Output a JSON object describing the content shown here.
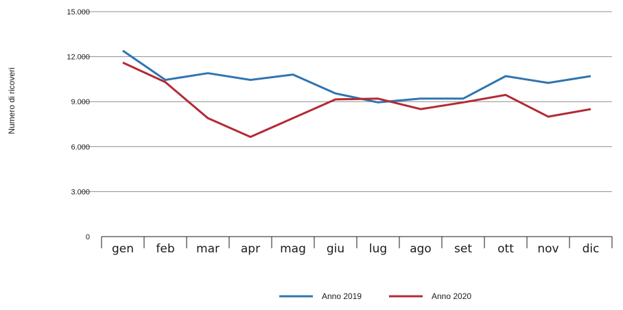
{
  "chart_data": {
    "type": "line",
    "ylabel": "Numero di ricoveri",
    "categories": [
      "gen",
      "feb",
      "mar",
      "apr",
      "mag",
      "giu",
      "lug",
      "ago",
      "set",
      "ott",
      "nov",
      "dic"
    ],
    "y_ticks": [
      {
        "value": 0,
        "label": "0"
      },
      {
        "value": 3000,
        "label": "3.000"
      },
      {
        "value": 6000,
        "label": "6.000"
      },
      {
        "value": 9000,
        "label": "9.000"
      },
      {
        "value": 12000,
        "label": "12.000"
      },
      {
        "value": 15000,
        "label": "15.000"
      }
    ],
    "ylim": [
      0,
      15000
    ],
    "grid": true,
    "legend_position": "bottom",
    "series": [
      {
        "name": "Anno 2019",
        "color": "#2e75b0",
        "values": [
          12400,
          10450,
          10900,
          10450,
          10800,
          9550,
          8950,
          9200,
          9200,
          10700,
          10250,
          10700
        ]
      },
      {
        "name": "Anno 2020",
        "color": "#b32a34",
        "values": [
          11600,
          10300,
          7900,
          6650,
          7900,
          9150,
          9200,
          8500,
          8950,
          9450,
          8000,
          8500
        ]
      }
    ]
  }
}
